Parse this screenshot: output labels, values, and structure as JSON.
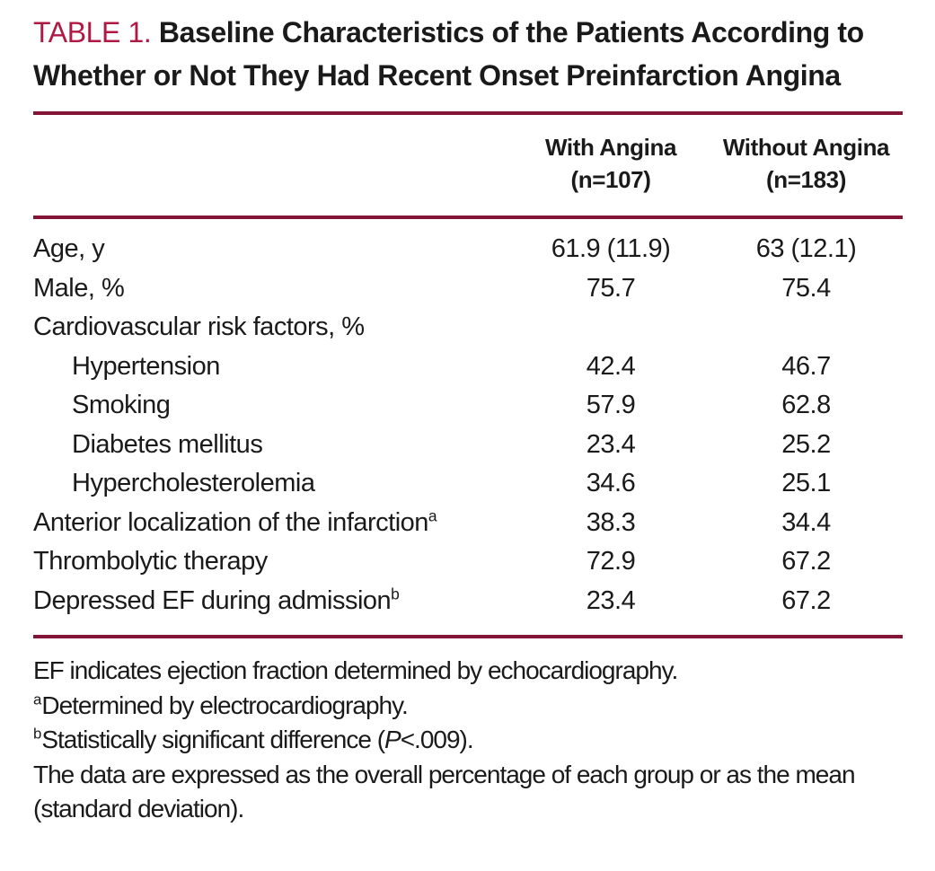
{
  "title": {
    "tag": "TABLE 1.",
    "text": "Baseline Characteristics of the Patients According to Whether or Not They Had Recent Onset Preinfarction Angina"
  },
  "columns": [
    {
      "name": "With Angina",
      "n": "(n=107)"
    },
    {
      "name": "Without Angina",
      "n": "(n=183)"
    }
  ],
  "rows": [
    {
      "label": "Age, y",
      "sup": "",
      "indent": false,
      "with_angina": "61.9 (11.9)",
      "without_angina": "63 (12.1)"
    },
    {
      "label": "Male, %",
      "sup": "",
      "indent": false,
      "with_angina": "75.7",
      "without_angina": "75.4"
    },
    {
      "label": "Cardiovascular risk factors, %",
      "sup": "",
      "indent": false,
      "with_angina": "",
      "without_angina": ""
    },
    {
      "label": "Hypertension",
      "sup": "",
      "indent": true,
      "with_angina": "42.4",
      "without_angina": "46.7"
    },
    {
      "label": "Smoking",
      "sup": "",
      "indent": true,
      "with_angina": "57.9",
      "without_angina": "62.8"
    },
    {
      "label": "Diabetes mellitus",
      "sup": "",
      "indent": true,
      "with_angina": "23.4",
      "without_angina": "25.2"
    },
    {
      "label": "Hypercholesterolemia",
      "sup": "",
      "indent": true,
      "with_angina": "34.6",
      "without_angina": "25.1"
    },
    {
      "label": "Anterior localization of the infarction",
      "sup": "a",
      "indent": false,
      "with_angina": "38.3",
      "without_angina": "34.4"
    },
    {
      "label": "Thrombolytic therapy",
      "sup": "",
      "indent": false,
      "with_angina": "72.9",
      "without_angina": "67.2"
    },
    {
      "label": "Depressed EF during admission",
      "sup": "b",
      "indent": false,
      "with_angina": "23.4",
      "without_angina": "67.2"
    }
  ],
  "footnotes": [
    {
      "sup": "",
      "text": "EF indicates ejection fraction determined by echocardiography."
    },
    {
      "sup": "a",
      "text": "Determined by electrocardiography."
    },
    {
      "sup": "b",
      "text_pre": "Statistically significant difference (",
      "text_italic": "P",
      "text_post": "<.009)."
    },
    {
      "sup": "",
      "text": "The data are expressed as the overall percentage of each group or as the mean (standard deviation)."
    }
  ],
  "colors": {
    "accent_red": "#b11945",
    "rule": "#851536",
    "text": "#1a1a1a"
  }
}
